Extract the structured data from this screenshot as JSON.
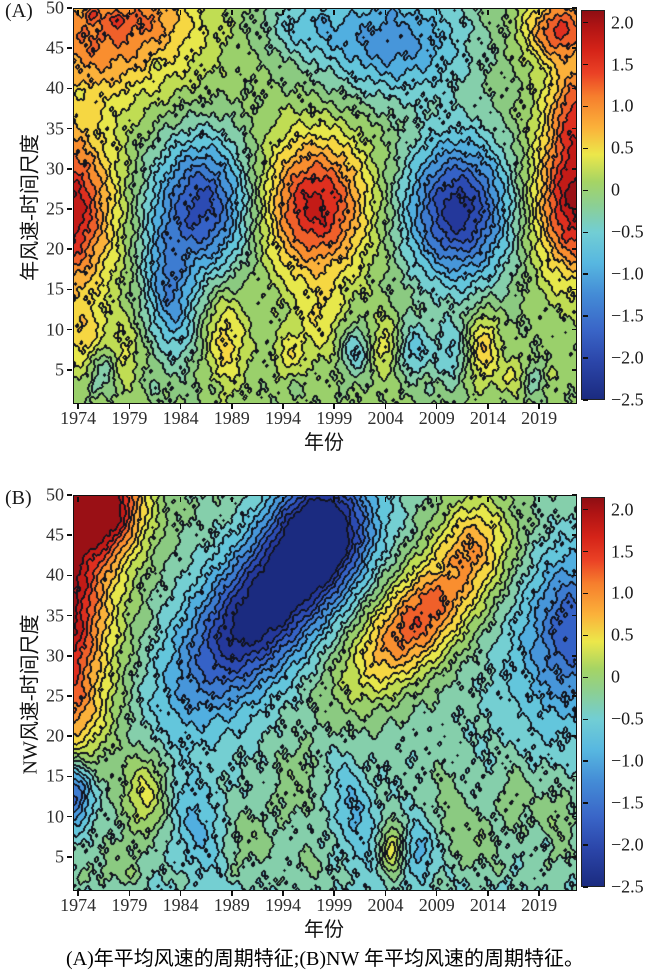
{
  "figure": {
    "caption": "(A)年平均风速的周期特征;(B)NW 年平均风速的周期特征。"
  },
  "chart_data": {
    "type": "heatmap",
    "style": "filled-contour-wavelet",
    "levels": {
      "min": -2.5,
      "step": 0.25,
      "count": 20
    },
    "palette": [
      "#1b2b80",
      "#24389b",
      "#2c4bb3",
      "#3562c7",
      "#3d7cd1",
      "#4796da",
      "#51afe0",
      "#63c6dc",
      "#74cfd2",
      "#85cfab",
      "#8bca81",
      "#9ad06b",
      "#c0dd53",
      "#e7e84b",
      "#f6d742",
      "#fbb13a",
      "#f98e2f",
      "#f0602a",
      "#df2f1f",
      "#c31b17",
      "#9a1015"
    ],
    "contour_line_color": "#12141e",
    "colorbar_gradient": [
      "#8f0e13 0%",
      "#b01414 4%",
      "#d42318 10%",
      "#ea4125 16%",
      "#f67e2d 22%",
      "#fbb13a 30%",
      "#ece74a 37%",
      "#a5d464 44%",
      "#8ccf93 50%",
      "#72ced4 57%",
      "#57b7e0 65%",
      "#448cd6 73%",
      "#3a66c8 82%",
      "#2c47ab 90%",
      "#1b2b80 100%"
    ],
    "colorbar": {
      "bar_max": 2.15,
      "bar_min": -2.5,
      "values": [
        2.0,
        1.5,
        1.0,
        0.5,
        0,
        -0.5,
        -1.0,
        -1.5,
        -2.0,
        -2.5
      ],
      "labels": [
        "2.0",
        "1.5",
        "1.0",
        "0.5",
        "0",
        "−0.5",
        "−1.0",
        "−1.5",
        "−2.0",
        "−2.5"
      ]
    },
    "noise": [
      [
        0.05,
        1.7,
        0.9,
        1.3
      ],
      [
        0.045,
        3.1,
        -1.4,
        0.7
      ],
      [
        0.04,
        5.9,
        3.1,
        2.1
      ],
      [
        0.028,
        9.7,
        -5.3,
        0.5
      ]
    ],
    "panels": [
      {
        "label": "(A)",
        "ylabel": "年风速-时间尺度",
        "xlabel": "年份",
        "x_range": [
          1973.5,
          2022.5
        ],
        "y_range": [
          1,
          50
        ],
        "x_ticks": [
          1974,
          1979,
          1984,
          1989,
          1994,
          1999,
          2004,
          2009,
          2014,
          2019
        ],
        "y_ticks": [
          5,
          10,
          15,
          20,
          25,
          30,
          35,
          40,
          45,
          50
        ],
        "base": {
          "offset": 0.05,
          "y_gain": 0
        },
        "features": [
          [
            1972.5,
            25,
            2.3,
            3.4,
            7.5,
            0
          ],
          [
            1974.5,
            9,
            0.7,
            1.6,
            3,
            0
          ],
          [
            1976,
            46.5,
            1.4,
            6.5,
            5.5,
            0
          ],
          [
            1981,
            49,
            0.45,
            3,
            2.2,
            0
          ],
          [
            1975.3,
            49.3,
            0.55,
            0.45,
            0.6,
            0
          ],
          [
            1977.8,
            48.6,
            0.5,
            0.4,
            0.55,
            0
          ],
          [
            1974.2,
            39.5,
            -0.4,
            0.5,
            0.7,
            0
          ],
          [
            1981.5,
            43,
            -0.35,
            0.45,
            0.6,
            0
          ],
          [
            1976.5,
            5.5,
            -0.7,
            1,
            2,
            0
          ],
          [
            1978.3,
            7,
            0.55,
            1,
            3,
            0
          ],
          [
            1982.8,
            14,
            -1.3,
            1.7,
            5.5,
            0.1
          ],
          [
            1986,
            25.5,
            -2.2,
            3.5,
            6.2,
            0
          ],
          [
            1988.3,
            9,
            0.85,
            1.5,
            4.5,
            0
          ],
          [
            1994.5,
            7,
            0.6,
            1,
            2,
            0
          ],
          [
            1997,
            25.5,
            2.05,
            3.8,
            6.2,
            0
          ],
          [
            1997.5,
            11,
            0.55,
            1.6,
            3.5,
            0
          ],
          [
            1995.5,
            48,
            -0.6,
            2.8,
            2.6,
            0
          ],
          [
            1997.8,
            48.8,
            -0.3,
            0.35,
            0.5,
            0
          ],
          [
            2004.5,
            46,
            -1.45,
            5.5,
            5,
            0
          ],
          [
            2004.5,
            49.5,
            -0.3,
            0.3,
            0.45,
            0
          ],
          [
            2001,
            7.5,
            -0.9,
            1.1,
            2.2,
            0
          ],
          [
            2004,
            8,
            0.72,
            1.2,
            2.6,
            0
          ],
          [
            2004,
            8,
            0.22,
            0.35,
            0.45,
            0
          ],
          [
            2006.5,
            7.5,
            -0.95,
            1.4,
            2.6,
            0
          ],
          [
            2010.3,
            7,
            -0.75,
            1.1,
            3,
            0
          ],
          [
            2011,
            25,
            -2.45,
            3.8,
            6.5,
            0
          ],
          [
            2013.5,
            8,
            0.95,
            1.1,
            3.2,
            0
          ],
          [
            2016.5,
            4.5,
            0.55,
            0.9,
            1.5,
            0
          ],
          [
            2018.5,
            4,
            -0.6,
            0.8,
            1.4,
            0
          ],
          [
            2020,
            4,
            0.45,
            0.7,
            1.2,
            0
          ],
          [
            2022.5,
            26,
            2.3,
            3,
            6.5,
            0
          ],
          [
            2022.5,
            38,
            1.35,
            2,
            4.5,
            0
          ],
          [
            2020.5,
            47,
            1.35,
            2.2,
            2.6,
            0
          ],
          [
            2022.5,
            50,
            0.6,
            3,
            3,
            0
          ],
          [
            1975.5,
            3,
            -0.35,
            0.4,
            0.7,
            0
          ],
          [
            1981.3,
            3,
            -0.4,
            0.45,
            0.8,
            0
          ],
          [
            1987,
            2.8,
            -0.35,
            0.4,
            0.7,
            0
          ],
          [
            1995,
            3,
            -0.35,
            0.4,
            0.7,
            0
          ],
          [
            2008.3,
            2.5,
            -0.35,
            0.4,
            0.7,
            0
          ],
          [
            2019.8,
            3.5,
            -0.3,
            0.4,
            0.6,
            0
          ]
        ]
      },
      {
        "label": "(B)",
        "ylabel": "NW风速-时间尺度",
        "xlabel": "年份",
        "x_range": [
          1973.5,
          2022.5
        ],
        "y_range": [
          1,
          50
        ],
        "x_ticks": [
          1974,
          1979,
          1984,
          1989,
          1994,
          1999,
          2004,
          2009,
          2014,
          2019
        ],
        "y_ticks": [
          5,
          10,
          15,
          20,
          25,
          30,
          35,
          40,
          45,
          50
        ],
        "base": {
          "offset": -0.55,
          "y_gain": 0.3
        },
        "features": [
          [
            1971,
            36,
            3.2,
            4.2,
            11,
            0
          ],
          [
            1976.5,
            49,
            2.5,
            2.8,
            4.5,
            0
          ],
          [
            1974,
            22,
            0.6,
            2.5,
            4,
            0
          ],
          [
            1973.3,
            13,
            -1.7,
            1.3,
            2.8,
            0
          ],
          [
            1980.5,
            13,
            1.1,
            1.7,
            3.8,
            0
          ],
          [
            1977.5,
            4,
            0.4,
            1.8,
            2.5,
            0
          ],
          [
            1985.5,
            9,
            -0.6,
            1.7,
            4.5,
            0.25
          ],
          [
            1992.5,
            37,
            -2.6,
            10,
            4,
            1.05
          ],
          [
            1997.5,
            46,
            -1.7,
            3,
            5,
            0
          ],
          [
            1999.5,
            46.5,
            -0.3,
            0.4,
            0.5,
            0
          ],
          [
            2001.5,
            44.5,
            -0.3,
            0.4,
            0.5,
            0
          ],
          [
            1990.5,
            7,
            0.45,
            2,
            3,
            0
          ],
          [
            1995,
            14,
            0.4,
            1.6,
            3.5,
            0
          ],
          [
            1996.5,
            4,
            0.35,
            1.2,
            2,
            0
          ],
          [
            2000.8,
            11,
            -0.6,
            1.2,
            4.5,
            0.2
          ],
          [
            2004.5,
            6,
            1.15,
            0.8,
            2.2,
            0
          ],
          [
            2007.2,
            6,
            -0.6,
            0.9,
            2.4,
            0
          ],
          [
            2007,
            34.5,
            2.05,
            7.5,
            3.2,
            1.0
          ],
          [
            2007.5,
            37.5,
            0.25,
            0.35,
            0.35,
            0
          ],
          [
            2009.3,
            41,
            -0.3,
            0.4,
            0.5,
            0
          ],
          [
            2010.6,
            40.5,
            -0.3,
            0.4,
            0.5,
            0
          ],
          [
            2012.5,
            45,
            0.9,
            2.5,
            4,
            0
          ],
          [
            2010,
            12,
            0.35,
            1.2,
            4,
            0.15
          ],
          [
            2012.8,
            7,
            0.45,
            1.5,
            3,
            0
          ],
          [
            2016.5,
            13,
            0.4,
            1.3,
            4,
            0
          ],
          [
            2019.5,
            7,
            -0.35,
            0.5,
            0.9,
            0
          ],
          [
            2020.5,
            9,
            0.5,
            1.6,
            4.5,
            0
          ],
          [
            2019,
            30,
            -0.45,
            3.5,
            9,
            0
          ],
          [
            2022.3,
            34,
            -1.3,
            2.8,
            7,
            0
          ],
          [
            1974.3,
            2.5,
            0.35,
            0.5,
            0.8,
            0
          ],
          [
            1979.3,
            3,
            0.3,
            0.5,
            0.8,
            0
          ],
          [
            1984,
            2.5,
            0.3,
            0.5,
            0.7,
            0
          ],
          [
            1989,
            3,
            0.3,
            0.5,
            0.8,
            0
          ],
          [
            1993.5,
            2,
            0.3,
            0.5,
            0.7,
            0
          ],
          [
            1999.8,
            2.5,
            0.3,
            0.4,
            0.7,
            0
          ],
          [
            2009.3,
            2,
            0.3,
            0.4,
            0.6,
            0
          ],
          [
            2014.8,
            3.5,
            0.3,
            0.5,
            0.8,
            0
          ],
          [
            2018,
            2.5,
            0.3,
            0.5,
            0.7,
            0
          ]
        ]
      }
    ]
  }
}
